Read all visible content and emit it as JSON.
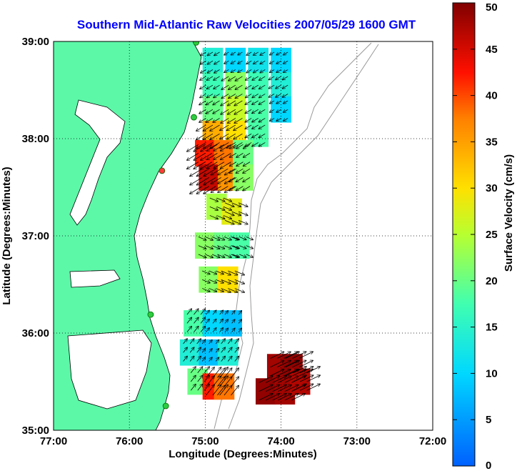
{
  "chart_data": {
    "type": "heatmap",
    "title": "Southern Mid-Atlantic Raw Velocities 2007/05/29 1600 GMT",
    "xlabel": "Longitude (Degrees:Minutes)",
    "ylabel": "Latitude (Degrees:Minutes)",
    "colorbar_label": "Surface Velocity (cm/s)",
    "xlim": [
      -77,
      -72
    ],
    "ylim": [
      35,
      39
    ],
    "x_ticks": [
      {
        "value": -77,
        "label": "77:00"
      },
      {
        "value": -76,
        "label": "76:00"
      },
      {
        "value": -75,
        "label": "75:00"
      },
      {
        "value": -74,
        "label": "74:00"
      },
      {
        "value": -73,
        "label": "73:00"
      },
      {
        "value": -72,
        "label": "72:00"
      }
    ],
    "y_ticks": [
      {
        "value": 35,
        "label": "35:00"
      },
      {
        "value": 36,
        "label": "36:00"
      },
      {
        "value": 37,
        "label": "37:00"
      },
      {
        "value": 38,
        "label": "38:00"
      },
      {
        "value": 39,
        "label": "39:00"
      }
    ],
    "colorbar": {
      "min": 0,
      "max": 50,
      "ticks": [
        {
          "value": 0,
          "label": "0"
        },
        {
          "value": 5,
          "label": "5"
        },
        {
          "value": 10,
          "label": "10"
        },
        {
          "value": 15,
          "label": "15"
        },
        {
          "value": 20,
          "label": "20"
        },
        {
          "value": 25,
          "label": "25"
        },
        {
          "value": 30,
          "label": "30"
        },
        {
          "value": 35,
          "label": "35"
        },
        {
          "value": 40,
          "label": "40"
        },
        {
          "value": 45,
          "label": "45"
        },
        {
          "value": 50,
          "label": "50"
        }
      ]
    },
    "grid": true,
    "land_color": "#5cf8a8",
    "radar_sites": [
      {
        "lon": -75.12,
        "lat": 38.99,
        "color": "#2ecc40"
      },
      {
        "lon": -75.15,
        "lat": 38.22,
        "color": "#2ecc40"
      },
      {
        "lon": -75.57,
        "lat": 37.67,
        "color": "#ff3b3b"
      },
      {
        "lon": -75.72,
        "lat": 36.19,
        "color": "#2ecc40"
      },
      {
        "lon": -75.52,
        "lat": 35.25,
        "color": "#2ecc40"
      }
    ],
    "regions": [
      {
        "name": "north",
        "cells": [
          {
            "lon": -74.9,
            "lat": 38.8,
            "v": 14
          },
          {
            "lon": -74.6,
            "lat": 38.8,
            "v": 10
          },
          {
            "lon": -74.3,
            "lat": 38.8,
            "v": 12
          },
          {
            "lon": -74.0,
            "lat": 38.8,
            "v": 10
          },
          {
            "lon": -74.9,
            "lat": 38.55,
            "v": 17
          },
          {
            "lon": -74.6,
            "lat": 38.55,
            "v": 22
          },
          {
            "lon": -74.3,
            "lat": 38.55,
            "v": 17
          },
          {
            "lon": -74.0,
            "lat": 38.55,
            "v": 14
          },
          {
            "lon": -74.9,
            "lat": 38.3,
            "v": 20
          },
          {
            "lon": -74.6,
            "lat": 38.3,
            "v": 26
          },
          {
            "lon": -74.3,
            "lat": 38.3,
            "v": 18
          },
          {
            "lon": -74.0,
            "lat": 38.3,
            "v": 10
          },
          {
            "lon": -74.9,
            "lat": 38.05,
            "v": 34
          },
          {
            "lon": -74.6,
            "lat": 38.05,
            "v": 30
          },
          {
            "lon": -74.3,
            "lat": 38.05,
            "v": 18
          },
          {
            "lon": -75.0,
            "lat": 37.85,
            "v": 42
          },
          {
            "lon": -74.75,
            "lat": 37.85,
            "v": 38
          },
          {
            "lon": -74.5,
            "lat": 37.85,
            "v": 20
          },
          {
            "lon": -74.95,
            "lat": 37.6,
            "v": 46
          },
          {
            "lon": -74.7,
            "lat": 37.6,
            "v": 36
          },
          {
            "lon": -74.5,
            "lat": 37.6,
            "v": 22
          }
        ]
      },
      {
        "name": "middle",
        "cells": [
          {
            "lon": -74.85,
            "lat": 37.3,
            "v": 24
          },
          {
            "lon": -74.65,
            "lat": 37.25,
            "v": 28
          },
          {
            "lon": -75.0,
            "lat": 36.9,
            "v": 22
          },
          {
            "lon": -74.75,
            "lat": 36.9,
            "v": 20
          },
          {
            "lon": -74.55,
            "lat": 36.9,
            "v": 18
          },
          {
            "lon": -74.95,
            "lat": 36.55,
            "v": 22
          },
          {
            "lon": -74.7,
            "lat": 36.55,
            "v": 30
          }
        ]
      },
      {
        "name": "south",
        "cells": [
          {
            "lon": -75.15,
            "lat": 36.1,
            "v": 18
          },
          {
            "lon": -74.9,
            "lat": 36.1,
            "v": 10
          },
          {
            "lon": -74.65,
            "lat": 36.1,
            "v": 8
          },
          {
            "lon": -75.2,
            "lat": 35.8,
            "v": 14
          },
          {
            "lon": -74.95,
            "lat": 35.8,
            "v": 8
          },
          {
            "lon": -74.7,
            "lat": 35.8,
            "v": 14
          },
          {
            "lon": -75.1,
            "lat": 35.5,
            "v": 20
          },
          {
            "lon": -74.9,
            "lat": 35.45,
            "v": 42
          },
          {
            "lon": -74.75,
            "lat": 35.45,
            "v": 38
          }
        ]
      },
      {
        "name": "offshore",
        "cells": [
          {
            "lon": -74.05,
            "lat": 35.65,
            "v": 48
          },
          {
            "lon": -73.85,
            "lat": 35.65,
            "v": 49
          },
          {
            "lon": -74.2,
            "lat": 35.4,
            "v": 49
          },
          {
            "lon": -73.95,
            "lat": 35.4,
            "v": 48
          },
          {
            "lon": -73.75,
            "lat": 35.5,
            "v": 47
          }
        ]
      }
    ]
  }
}
